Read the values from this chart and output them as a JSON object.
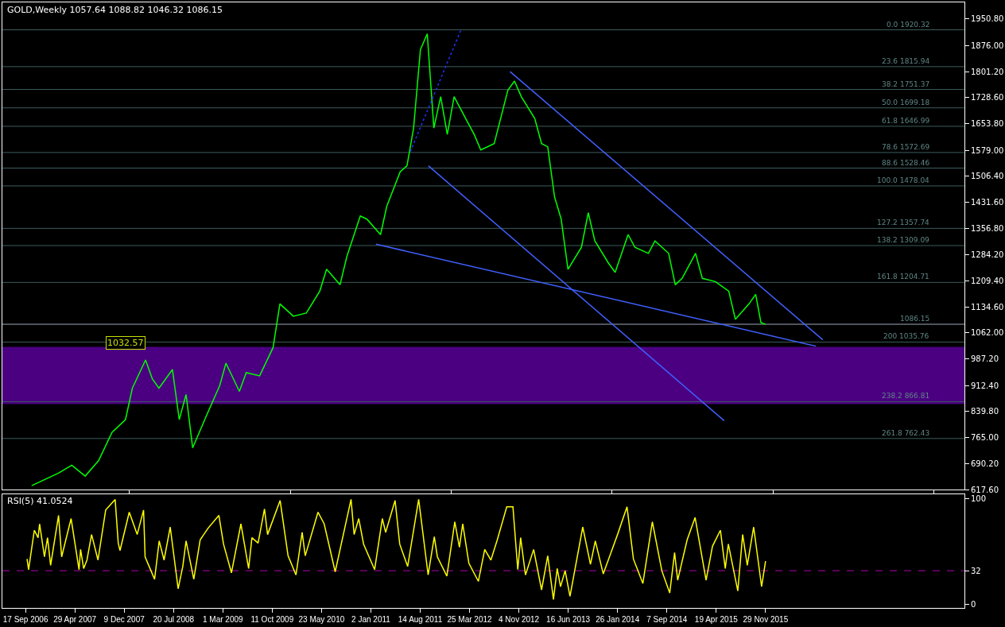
{
  "chart_data": [
    {
      "type": "line",
      "title": "GOLD,Weekly 1057.64 1088.82 1046.32 1086.15",
      "series": [
        {
          "color": "#00ff00",
          "x": [
            "2006-10-15",
            "2007-02-15",
            "2007-04-15",
            "2007-06-15",
            "2007-08-15",
            "2007-10-15",
            "2007-12-15",
            "2008-01-15",
            "2008-03-15",
            "2008-04-15",
            "2008-05-15",
            "2008-07-15",
            "2008-08-15",
            "2008-09-15",
            "2008-10-15",
            "2008-12-15",
            "2009-02-15",
            "2009-03-15",
            "2009-05-15",
            "2009-06-15",
            "2009-08-15",
            "2009-10-15",
            "2009-11-15",
            "2010-01-15",
            "2010-03-15",
            "2010-05-15",
            "2010-06-15",
            "2010-08-15",
            "2010-09-15",
            "2010-11-15",
            "2010-12-15",
            "2011-02-15",
            "2011-03-15",
            "2011-05-15",
            "2011-06-15",
            "2011-07-15",
            "2011-08-15",
            "2011-09-15",
            "2011-10-15",
            "2011-11-15",
            "2011-12-15",
            "2012-01-15",
            "2012-03-15",
            "2012-04-15",
            "2012-05-15",
            "2012-07-15",
            "2012-09-15",
            "2012-10-15",
            "2012-11-15",
            "2013-01-15",
            "2013-02-15",
            "2013-03-15",
            "2013-04-15",
            "2013-05-15",
            "2013-06-15",
            "2013-08-15",
            "2013-09-15",
            "2013-10-15",
            "2013-12-15",
            "2014-01-15",
            "2014-03-15",
            "2014-04-15",
            "2014-06-15",
            "2014-07-15",
            "2014-09-15",
            "2014-10-15",
            "2014-11-15",
            "2015-01-15",
            "2015-02-15",
            "2015-04-15",
            "2015-06-15",
            "2015-07-15",
            "2015-09-15",
            "2015-10-15",
            "2015-11-08",
            "2015-11-29"
          ],
          "values": [
            629,
            665,
            687,
            656,
            700,
            780,
            816,
            905,
            985,
            931,
            905,
            958,
            816,
            887,
            736,
            825,
            913,
            976,
            896,
            949,
            940,
            1020,
            1144,
            1109,
            1118,
            1180,
            1242,
            1198,
            1278,
            1393,
            1384,
            1340,
            1420,
            1518,
            1535,
            1642,
            1864,
            1909,
            1642,
            1731,
            1624,
            1731,
            1660,
            1624,
            1580,
            1598,
            1749,
            1775,
            1731,
            1669,
            1598,
            1589,
            1447,
            1384,
            1242,
            1304,
            1402,
            1322,
            1260,
            1233,
            1340,
            1304,
            1287,
            1322,
            1287,
            1198,
            1216,
            1287,
            1216,
            1207,
            1180,
            1100,
            1144,
            1171,
            1091,
            1086
          ]
        },
        {
          "color": "#4060ff",
          "x": [
            "2011-01-25",
            "2016-07-15"
          ],
          "values": [
            1313,
            1024
          ]
        },
        {
          "color": "#4060ff",
          "x": [
            "2012-09-25",
            "2016-08-15"
          ],
          "values": [
            1802,
            1042
          ]
        },
        {
          "color": "#4060ff",
          "x": [
            "2011-09-20",
            "2015-05-25"
          ],
          "values": [
            1535,
            813
          ]
        },
        {
          "color": "#2030ff",
          "line_style": "dotted",
          "x": [
            "2011-06-30",
            "2012-02-15"
          ],
          "values": [
            1575,
            1920
          ]
        }
      ],
      "xlim": [
        "2006-06-04",
        "2018-05-20"
      ],
      "ylim": [
        617,
        1998
      ],
      "yticks": [
        {
          "value": 617.6,
          "label": "617.60"
        },
        {
          "value": 690.2,
          "label": "690.20"
        },
        {
          "value": 765,
          "label": "765.00"
        },
        {
          "value": 839.8,
          "label": "839.80"
        },
        {
          "value": 912.4,
          "label": "912.40"
        },
        {
          "value": 987.2,
          "label": "987.20"
        },
        {
          "value": 1062,
          "label": "1062.00"
        },
        {
          "value": 1134.6,
          "label": "1134.60"
        },
        {
          "value": 1209.4,
          "label": "1209.40"
        },
        {
          "value": 1284.2,
          "label": "1284.20"
        },
        {
          "value": 1356.8,
          "label": "1356.80"
        },
        {
          "value": 1431.6,
          "label": "1431.60"
        },
        {
          "value": 1506.4,
          "label": "1506.40"
        },
        {
          "value": 1579,
          "label": "1579.00"
        },
        {
          "value": 1653.8,
          "label": "1653.80"
        },
        {
          "value": 1728.6,
          "label": "1728.60"
        },
        {
          "value": 1801.2,
          "label": "1801.20"
        },
        {
          "value": 1876,
          "label": "1876.00"
        },
        {
          "value": 1950.8,
          "label": "1950.80"
        }
      ],
      "ref_lines": [
        {
          "axis": "y",
          "value": 1920.32,
          "label": "0.0 1920.32",
          "color": "#3d5c5c"
        },
        {
          "axis": "y",
          "value": 1815.94,
          "label": "23.6 1815.94",
          "color": "#3d5c5c"
        },
        {
          "axis": "y",
          "value": 1751.37,
          "label": "38.2 1751.37",
          "color": "#3d5c5c"
        },
        {
          "axis": "y",
          "value": 1699.18,
          "label": "50.0 1699.18",
          "color": "#3d5c5c"
        },
        {
          "axis": "y",
          "value": 1646.99,
          "label": "61.8 1646.99",
          "color": "#3d5c5c"
        },
        {
          "axis": "y",
          "value": 1572.69,
          "label": "78.6 1572.69",
          "color": "#3d5c5c"
        },
        {
          "axis": "y",
          "value": 1528.46,
          "label": "88.6 1528.46",
          "color": "#3d5c5c"
        },
        {
          "axis": "y",
          "value": 1478.04,
          "label": "100.0 1478.04",
          "color": "#3d5c5c"
        },
        {
          "axis": "y",
          "value": 1357.74,
          "label": "127.2 1357.74",
          "color": "#3d5c5c"
        },
        {
          "axis": "y",
          "value": 1309.09,
          "label": "138.2 1309.09",
          "color": "#3d5c5c"
        },
        {
          "axis": "y",
          "value": 1204.71,
          "label": "161.8 1204.71",
          "color": "#3d5c5c"
        },
        {
          "axis": "y",
          "value": 1035.76,
          "label": "200 1035.76",
          "color": "#3d5c5c"
        },
        {
          "axis": "y",
          "value": 866.81,
          "label": "238.2 866.81",
          "color": "#3d5c5c"
        },
        {
          "axis": "y",
          "value": 762.43,
          "label": "261.8 762.43",
          "color": "#3d5c5c"
        },
        {
          "axis": "y",
          "value": 1086.15,
          "label": "1086.15",
          "color": "#a0a8b8"
        }
      ],
      "bands": [
        {
          "axis": "y",
          "from": 860,
          "to": 1022,
          "color": "#4b0082"
        }
      ],
      "annotations": [
        {
          "text": "1032.57",
          "x": "2008-03-15",
          "y": 1032.57
        }
      ],
      "tick_labels": "y",
      "grid": false,
      "marker": "none"
    },
    {
      "type": "line",
      "title": "RSI(5) 41.0524",
      "series": [
        {
          "color": "#ffff00",
          "x": [
            "2006-09-24",
            "2006-10-01",
            "2006-10-27",
            "2006-11-13",
            "2006-11-20",
            "2006-12-12",
            "2006-12-26",
            "2007-01-09",
            "2007-02-14",
            "2007-02-28",
            "2007-04-12",
            "2007-05-18",
            "2007-05-25",
            "2007-06-08",
            "2007-06-23",
            "2007-07-14",
            "2007-08-12",
            "2007-09-16",
            "2007-10-29",
            "2007-11-12",
            "2007-11-20",
            "2008-01-01",
            "2008-02-06",
            "2008-03-06",
            "2008-03-13",
            "2008-04-25",
            "2008-05-16",
            "2008-06-07",
            "2008-07-05",
            "2008-08-10",
            "2008-08-31",
            "2008-09-15",
            "2008-10-20",
            "2008-11-18",
            "2008-12-24",
            "2009-02-11",
            "2009-03-04",
            "2009-04-09",
            "2009-05-22",
            "2009-06-26",
            "2009-07-11",
            "2009-08-08",
            "2009-09-06",
            "2009-09-20",
            "2009-11-16",
            "2009-12-22",
            "2010-01-27",
            "2010-02-24",
            "2010-03-10",
            "2010-05-07",
            "2010-06-04",
            "2010-07-24",
            "2010-10-04",
            "2010-10-18",
            "2010-11-08",
            "2010-11-30",
            "2011-01-19",
            "2011-02-23",
            "2011-03-10",
            "2011-04-22",
            "2011-05-13",
            "2011-06-18",
            "2011-08-07",
            "2011-09-19",
            "2011-10-17",
            "2011-10-31",
            "2011-12-13",
            "2012-01-18",
            "2012-02-08",
            "2012-02-23",
            "2012-03-22",
            "2012-05-04",
            "2012-06-02",
            "2012-06-30",
            "2012-07-29",
            "2012-09-10",
            "2012-10-08",
            "2012-10-30",
            "2012-11-12",
            "2012-12-04",
            "2013-01-10",
            "2013-02-15",
            "2013-03-15",
            "2013-04-10",
            "2013-04-27",
            "2013-05-12",
            "2013-06-02",
            "2013-06-24",
            "2013-08-21",
            "2013-09-25",
            "2013-10-17",
            "2013-11-22",
            "2014-01-26",
            "2014-03-10",
            "2014-04-08",
            "2014-05-21",
            "2014-07-03",
            "2014-08-15",
            "2014-09-20",
            "2014-10-12",
            "2014-10-26",
            "2014-12-08",
            "2015-01-13",
            "2015-03-04",
            "2015-04-02",
            "2015-05-08",
            "2015-05-30",
            "2015-06-13",
            "2015-07-26",
            "2015-08-17",
            "2015-09-07",
            "2015-10-06",
            "2015-11-11",
            "2015-11-29"
          ],
          "values": [
            43,
            33,
            70,
            63,
            76,
            45,
            63,
            37,
            84,
            45,
            81,
            33,
            52,
            34,
            42,
            66,
            42,
            89,
            99,
            58,
            51,
            87,
            66,
            89,
            45,
            24,
            60,
            42,
            73,
            15,
            36,
            60,
            24,
            61,
            72,
            84,
            57,
            30,
            76,
            34,
            63,
            58,
            90,
            66,
            98,
            46,
            28,
            68,
            46,
            87,
            76,
            31,
            99,
            66,
            81,
            57,
            33,
            81,
            68,
            98,
            57,
            36,
            99,
            28,
            64,
            45,
            27,
            78,
            54,
            76,
            39,
            22,
            52,
            42,
            61,
            92,
            92,
            33,
            63,
            28,
            52,
            14,
            46,
            5,
            34,
            17,
            32,
            8,
            73,
            38,
            60,
            29,
            66,
            92,
            43,
            20,
            78,
            32,
            11,
            49,
            23,
            61,
            82,
            23,
            55,
            70,
            34,
            57,
            13,
            66,
            37,
            73,
            17,
            41
          ]
        }
      ],
      "xlim": [
        "2006-06-04",
        "2018-05-20"
      ],
      "xticks": [
        {
          "value": "2006-09-17",
          "label": "17 Sep 2006"
        },
        {
          "value": "2007-04-29",
          "label": "29 Apr 2007"
        },
        {
          "value": "2007-12-09",
          "label": "9 Dec 2007"
        },
        {
          "value": "2008-07-20",
          "label": "20 Jul 2008"
        },
        {
          "value": "2009-03-01",
          "label": "1 Mar 2009"
        },
        {
          "value": "2009-10-11",
          "label": "11 Oct 2009"
        },
        {
          "value": "2010-05-23",
          "label": "23 May 2010"
        },
        {
          "value": "2011-01-02",
          "label": "2 Jan 2011"
        },
        {
          "value": "2011-08-14",
          "label": "14 Aug 2011"
        },
        {
          "value": "2012-03-25",
          "label": "25 Mar 2012"
        },
        {
          "value": "2012-11-04",
          "label": "4 Nov 2012"
        },
        {
          "value": "2013-06-16",
          "label": "16 Jun 2013"
        },
        {
          "value": "2014-01-26",
          "label": "26 Jan 2014"
        },
        {
          "value": "2014-09-07",
          "label": "7 Sep 2014"
        },
        {
          "value": "2015-04-19",
          "label": "19 Apr 2015"
        },
        {
          "value": "2015-11-29",
          "label": "29 Nov 2015"
        }
      ],
      "ylim": [
        -3,
        104
      ],
      "yticks": [
        0,
        32,
        100
      ],
      "ref_lines": [
        {
          "axis": "y",
          "value": 32,
          "color": "#b000b0",
          "line_style": "dashed"
        }
      ],
      "grid": false,
      "marker": "none"
    }
  ]
}
